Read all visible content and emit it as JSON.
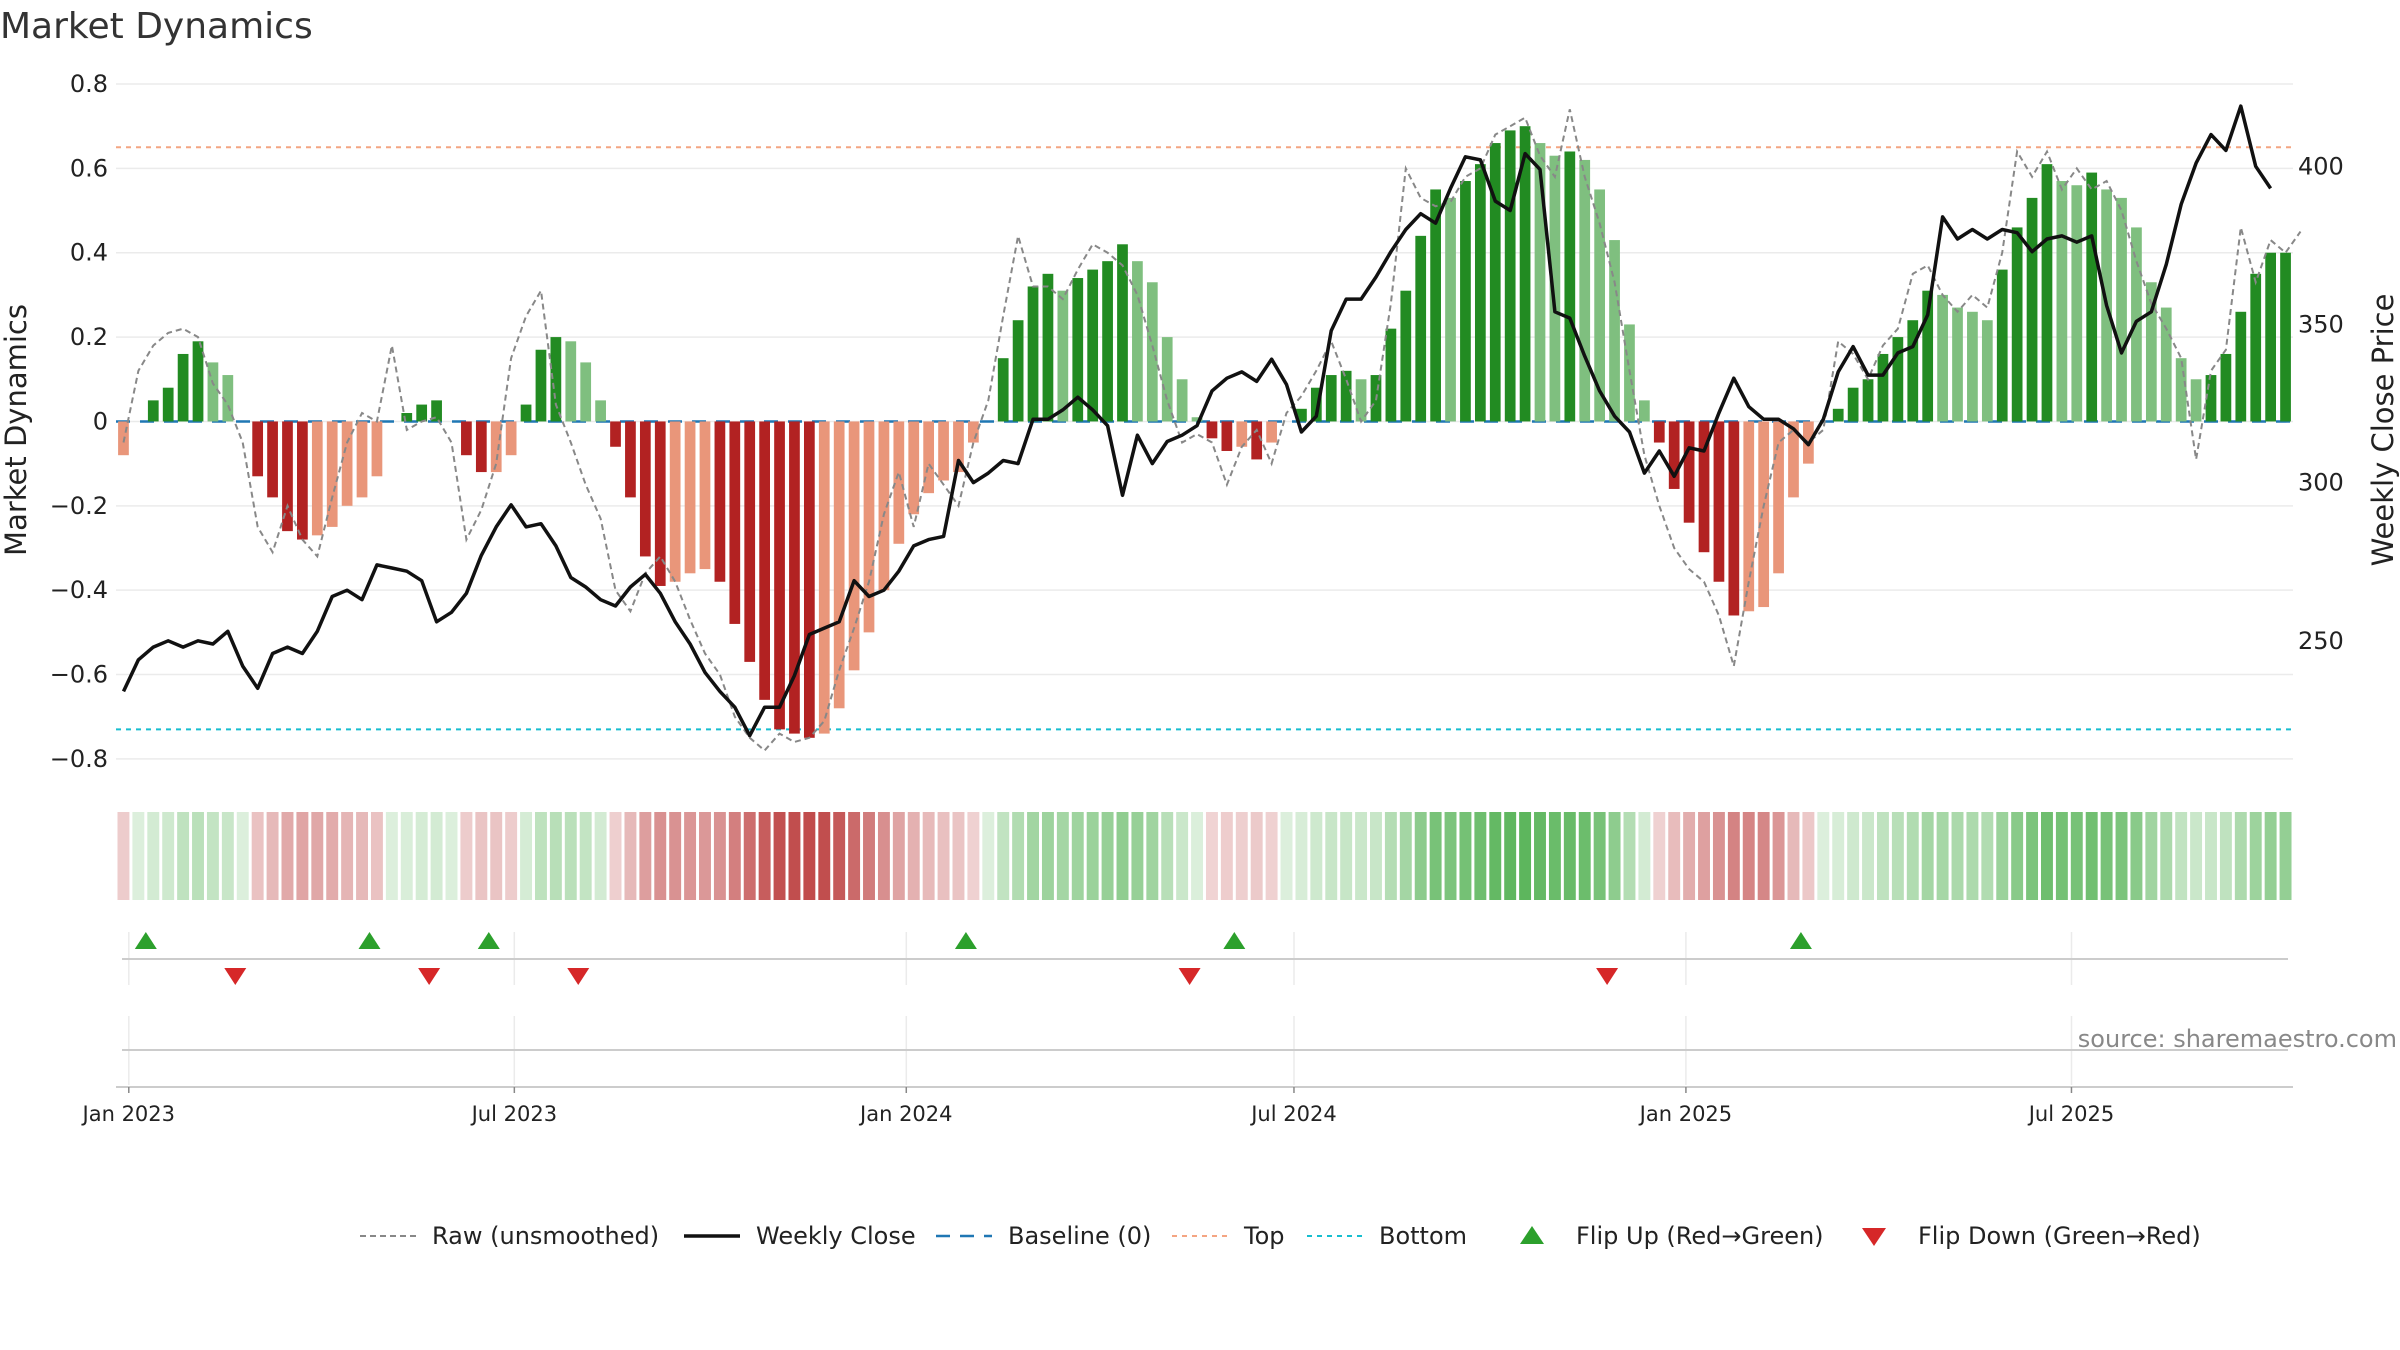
{
  "chart_data": {
    "type": "bar",
    "title": "Market Dynamics",
    "ylabel": "Market Dynamics",
    "y2label": "Weekly Close Price",
    "ylim": [
      -0.85,
      0.8
    ],
    "y2lim": [
      206,
      426
    ],
    "yticks": [
      0.8,
      0.6,
      0.4,
      0.2,
      0,
      -0.2,
      -0.4,
      -0.6,
      -0.8
    ],
    "ytick_labels": [
      "0.8",
      "0.6",
      "0.4",
      "0.2",
      "0",
      "−0.2",
      "−0.4",
      "−0.6",
      "−0.8"
    ],
    "y2ticks": [
      250,
      300,
      350,
      400
    ],
    "y2tick_labels": [
      "250",
      "300",
      "350",
      "400"
    ],
    "x_start": "2022-12-26",
    "x_end": "2025-10-13",
    "xticks": [
      "2023-01-01",
      "2023-07-01",
      "2024-01-01",
      "2024-07-01",
      "2025-01-01",
      "2025-07-01"
    ],
    "xtick_labels": [
      "Jan 2023",
      "Jul 2023",
      "Jan 2024",
      "Jul 2024",
      "Jan 2025",
      "Jul 2025"
    ],
    "grid": true,
    "top_level": 0.65,
    "bottom_level": -0.73,
    "baseline": 0,
    "bar_colors": {
      "green_strong": "#228b22",
      "green_weak": "#7fbf7f",
      "red_strong": "#b22222",
      "red_weak": "#e9967a"
    },
    "line_colors": {
      "raw": "#888888",
      "close": "#111111",
      "baseline": "#1f77b4",
      "top": "#f4a582",
      "bottom": "#17becf",
      "flip_up": "#2ca02c",
      "flip_down": "#d62728"
    },
    "series": [
      {
        "name": "Market Dynamics",
        "values": [
          -0.08,
          0.0,
          0.05,
          0.08,
          0.16,
          0.19,
          0.14,
          0.11,
          0.0,
          -0.13,
          -0.18,
          -0.26,
          -0.28,
          -0.27,
          -0.25,
          -0.2,
          -0.18,
          -0.13,
          0.0,
          0.02,
          0.04,
          0.05,
          0.0,
          -0.08,
          -0.12,
          -0.12,
          -0.08,
          0.04,
          0.17,
          0.2,
          0.19,
          0.14,
          0.05,
          -0.06,
          -0.18,
          -0.32,
          -0.39,
          -0.38,
          -0.36,
          -0.35,
          -0.38,
          -0.48,
          -0.57,
          -0.66,
          -0.73,
          -0.74,
          -0.75,
          -0.74,
          -0.68,
          -0.59,
          -0.5,
          -0.4,
          -0.29,
          -0.22,
          -0.17,
          -0.14,
          -0.12,
          -0.05,
          0.0,
          0.15,
          0.24,
          0.32,
          0.35,
          0.31,
          0.34,
          0.36,
          0.38,
          0.42,
          0.38,
          0.33,
          0.2,
          0.1,
          0.01,
          -0.04,
          -0.07,
          -0.06,
          -0.09,
          -0.05,
          0.0,
          0.03,
          0.08,
          0.11,
          0.12,
          0.1,
          0.11,
          0.22,
          0.31,
          0.44,
          0.55,
          0.53,
          0.57,
          0.61,
          0.66,
          0.69,
          0.7,
          0.66,
          0.63,
          0.64,
          0.62,
          0.55,
          0.43,
          0.23,
          0.05,
          -0.05,
          -0.16,
          -0.24,
          -0.31,
          -0.38,
          -0.46,
          -0.45,
          -0.44,
          -0.36,
          -0.18,
          -0.1,
          0.0,
          0.03,
          0.08,
          0.1,
          0.16,
          0.2,
          0.24,
          0.31,
          0.3,
          0.27,
          0.26,
          0.24,
          0.36,
          0.46,
          0.53,
          0.61,
          0.57,
          0.56,
          0.59,
          0.55,
          0.53,
          0.46,
          0.33,
          0.27,
          0.15,
          0.1,
          0.11,
          0.16,
          0.26,
          0.35,
          0.4,
          0.4
        ]
      },
      {
        "name": "Raw (unsmoothed)",
        "values": [
          -0.05,
          0.12,
          0.18,
          0.21,
          0.22,
          0.2,
          0.09,
          0.04,
          -0.05,
          -0.25,
          -0.31,
          -0.2,
          -0.28,
          -0.32,
          -0.18,
          -0.05,
          0.02,
          0.0,
          0.18,
          -0.02,
          0.0,
          0.01,
          -0.05,
          -0.28,
          -0.21,
          -0.1,
          0.15,
          0.25,
          0.31,
          0.04,
          -0.05,
          -0.15,
          -0.23,
          -0.4,
          -0.45,
          -0.36,
          -0.32,
          -0.38,
          -0.47,
          -0.55,
          -0.6,
          -0.7,
          -0.75,
          -0.78,
          -0.74,
          -0.76,
          -0.75,
          -0.71,
          -0.59,
          -0.49,
          -0.38,
          -0.22,
          -0.12,
          -0.25,
          -0.1,
          -0.15,
          -0.2,
          -0.05,
          0.05,
          0.25,
          0.44,
          0.32,
          0.32,
          0.29,
          0.36,
          0.42,
          0.4,
          0.37,
          0.3,
          0.18,
          0.05,
          -0.05,
          -0.03,
          -0.05,
          -0.15,
          -0.06,
          -0.02,
          -0.1,
          0.02,
          0.06,
          0.12,
          0.19,
          0.1,
          0.0,
          0.05,
          0.28,
          0.6,
          0.53,
          0.51,
          0.52,
          0.58,
          0.6,
          0.68,
          0.7,
          0.72,
          0.63,
          0.58,
          0.74,
          0.58,
          0.47,
          0.33,
          0.12,
          -0.08,
          -0.2,
          -0.3,
          -0.35,
          -0.38,
          -0.46,
          -0.58,
          -0.38,
          -0.2,
          -0.05,
          -0.02,
          -0.05,
          -0.02,
          0.19,
          0.16,
          0.1,
          0.18,
          0.22,
          0.35,
          0.37,
          0.3,
          0.26,
          0.3,
          0.27,
          0.4,
          0.64,
          0.58,
          0.64,
          0.55,
          0.6,
          0.55,
          0.57,
          0.5,
          0.38,
          0.28,
          0.22,
          0.15,
          -0.09,
          0.12,
          0.17,
          0.46,
          0.33,
          0.43,
          0.4,
          0.45
        ]
      },
      {
        "name": "Weekly Close",
        "values": [
          234,
          244,
          248,
          250,
          248,
          250,
          249,
          253,
          242,
          235,
          246,
          248,
          246,
          253,
          264,
          266,
          263,
          274,
          273,
          272,
          269,
          256,
          259,
          265,
          277,
          286,
          293,
          286,
          287,
          280,
          270,
          267,
          263,
          261,
          267,
          271,
          265,
          256,
          249,
          240,
          234,
          229,
          220,
          229,
          229,
          239,
          252,
          254,
          256,
          269,
          264,
          266,
          272,
          280,
          282,
          283,
          307,
          300,
          303,
          307,
          306,
          320,
          320,
          323,
          327,
          323,
          318,
          296,
          315,
          306,
          313,
          315,
          318,
          329,
          333,
          335,
          332,
          339,
          331,
          316,
          321,
          348,
          358,
          358,
          365,
          373,
          380,
          385,
          382,
          393,
          403,
          402,
          389,
          386,
          404,
          399,
          354,
          352,
          340,
          329,
          321,
          316,
          303,
          310,
          302,
          311,
          310,
          322,
          333,
          324,
          320,
          320,
          317,
          312,
          320,
          335,
          343,
          334,
          334,
          341,
          343,
          353,
          384,
          377,
          380,
          377,
          380,
          379,
          373,
          377,
          378,
          376,
          378,
          356,
          341,
          351,
          354,
          369,
          388,
          401,
          410,
          405,
          419,
          400,
          393
        ]
      }
    ],
    "regime_strip": {
      "values": [
        -0.08,
        0.0,
        0.05,
        0.08,
        0.16,
        0.19,
        0.14,
        0.11,
        0.0,
        -0.13,
        -0.18,
        -0.26,
        -0.28,
        -0.27,
        -0.25,
        -0.2,
        -0.18,
        -0.13,
        0.0,
        0.02,
        0.04,
        0.05,
        0.0,
        -0.08,
        -0.12,
        -0.12,
        -0.08,
        0.04,
        0.17,
        0.2,
        0.19,
        0.14,
        0.05,
        -0.06,
        -0.18,
        -0.32,
        -0.39,
        -0.38,
        -0.36,
        -0.35,
        -0.38,
        -0.48,
        -0.57,
        -0.66,
        -0.73,
        -0.74,
        -0.75,
        -0.74,
        -0.68,
        -0.59,
        -0.5,
        -0.4,
        -0.29,
        -0.22,
        -0.17,
        -0.14,
        -0.12,
        -0.05,
        0.0,
        0.15,
        0.24,
        0.32,
        0.35,
        0.31,
        0.34,
        0.36,
        0.38,
        0.42,
        0.38,
        0.33,
        0.2,
        0.1,
        0.01,
        -0.04,
        -0.07,
        -0.06,
        -0.09,
        -0.05,
        0.0,
        0.03,
        0.08,
        0.11,
        0.12,
        0.1,
        0.11,
        0.22,
        0.31,
        0.44,
        0.55,
        0.53,
        0.57,
        0.61,
        0.66,
        0.69,
        0.7,
        0.66,
        0.63,
        0.64,
        0.62,
        0.55,
        0.43,
        0.23,
        0.05,
        -0.05,
        -0.16,
        -0.24,
        -0.31,
        -0.38,
        -0.46,
        -0.45,
        -0.44,
        -0.36,
        -0.18,
        -0.1,
        0.0,
        0.03,
        0.08,
        0.1,
        0.16,
        0.2,
        0.24,
        0.31,
        0.3,
        0.27,
        0.26,
        0.24,
        0.36,
        0.46,
        0.53,
        0.61,
        0.57,
        0.56,
        0.59,
        0.55,
        0.53,
        0.46,
        0.33,
        0.27,
        0.15,
        0.1,
        0.11,
        0.16,
        0.26,
        0.35,
        0.4,
        0.4
      ]
    },
    "flip_up_dates": [
      "2023-01-09",
      "2023-04-24",
      "2023-06-19",
      "2024-01-29",
      "2024-06-03",
      "2025-02-24"
    ],
    "flip_down_dates": [
      "2023-02-20",
      "2023-05-22",
      "2023-07-31",
      "2024-05-13",
      "2024-11-25"
    ],
    "legend": {
      "position": "bottom-center",
      "entries": [
        {
          "label": "Raw (unsmoothed)",
          "style": "dashed-gray"
        },
        {
          "label": "Weekly Close",
          "style": "solid-black"
        },
        {
          "label": "Baseline (0)",
          "style": "dashed-blue"
        },
        {
          "label": "Top",
          "style": "dotted-orange"
        },
        {
          "label": "Bottom",
          "style": "dotted-cyan"
        },
        {
          "label": "Flip Up (Red→Green)",
          "style": "triangle-up-green"
        },
        {
          "label": "Flip Down (Green→Red)",
          "style": "triangle-down-red"
        }
      ]
    },
    "source": "source: sharemaestro.com"
  }
}
